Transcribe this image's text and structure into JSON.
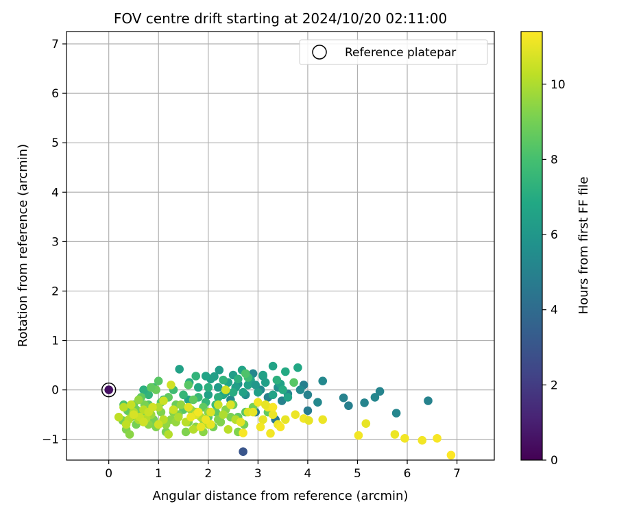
{
  "chart_data": {
    "type": "scatter",
    "title": "FOV centre drift starting at 2024/10/20 02:11:00",
    "xlabel": "Angular distance from reference (arcmin)",
    "ylabel": "Rotation from reference (arcmin)",
    "xlim": [
      -0.85,
      7.75
    ],
    "ylim": [
      -1.42,
      7.25
    ],
    "xticks": [
      0,
      1,
      2,
      3,
      4,
      5,
      6,
      7
    ],
    "yticks": [
      -1,
      0,
      1,
      2,
      3,
      4,
      5,
      6,
      7
    ],
    "grid": true,
    "legend": {
      "position": "top-right",
      "entries": [
        {
          "label": "Reference platepar",
          "marker": "open-circle",
          "color": "#000000"
        }
      ]
    },
    "reference_point": {
      "x": 0,
      "y": 0
    },
    "colorbar": {
      "label": "Hours from first FF file",
      "min": 0,
      "max": 11.4,
      "ticks": [
        0,
        2,
        4,
        6,
        8,
        10
      ],
      "colormap": "viridis"
    },
    "points": [
      [
        0,
        0,
        0.5
      ],
      [
        2.7,
        -1.25,
        3.0
      ],
      [
        4.3,
        0.18,
        5.3
      ],
      [
        4.72,
        -0.16,
        5.0
      ],
      [
        4.82,
        -0.32,
        4.9
      ],
      [
        5.14,
        -0.26,
        5.1
      ],
      [
        5.35,
        -0.15,
        5.2
      ],
      [
        5.45,
        -0.03,
        5.1
      ],
      [
        5.78,
        -0.47,
        5.2
      ],
      [
        6.42,
        -0.22,
        5.0
      ],
      [
        4.2,
        -0.25,
        5.3
      ],
      [
        4.0,
        -0.42,
        4.7
      ],
      [
        3.92,
        0.1,
        4.9
      ],
      [
        4.0,
        -0.1,
        5.0
      ],
      [
        3.85,
        0.0,
        5.4
      ],
      [
        3.6,
        -0.08,
        5.2
      ],
      [
        3.48,
        -0.22,
        5.0
      ],
      [
        3.35,
        -0.6,
        4.6
      ],
      [
        3.4,
        0.05,
        5.6
      ],
      [
        3.2,
        -0.15,
        5.0
      ],
      [
        3.1,
        0.28,
        5.8
      ],
      [
        2.9,
        0.33,
        5.2
      ],
      [
        2.95,
        -0.45,
        4.8
      ],
      [
        3.05,
        0.0,
        5.3
      ],
      [
        2.75,
        -0.1,
        5.5
      ],
      [
        2.6,
        0.12,
        5.8
      ],
      [
        2.45,
        -0.2,
        5.4
      ],
      [
        2.35,
        -0.05,
        6.0
      ],
      [
        3.3,
        0.48,
        6.6
      ],
      [
        3.55,
        0.37,
        6.9
      ],
      [
        3.8,
        0.45,
        6.8
      ],
      [
        3.1,
        0.3,
        6.5
      ],
      [
        2.85,
        0.2,
        6.6
      ],
      [
        2.68,
        0.4,
        6.6
      ],
      [
        2.5,
        0.3,
        6.3
      ],
      [
        2.22,
        0.4,
        6.2
      ],
      [
        2.05,
        0.22,
        6.4
      ],
      [
        2.12,
        0.27,
        6.4
      ],
      [
        1.95,
        0.28,
        6.6
      ],
      [
        1.42,
        0.42,
        6.5
      ],
      [
        1.62,
        0.15,
        7.0
      ],
      [
        3.3,
        -0.1,
        6.6
      ],
      [
        3.0,
        -0.05,
        6.4
      ],
      [
        2.8,
        0.1,
        6.6
      ],
      [
        2.55,
        0.05,
        6.4
      ],
      [
        2.3,
        -0.1,
        6.8
      ],
      [
        3.15,
        0.15,
        6.4
      ],
      [
        2.95,
        0.1,
        6.0
      ],
      [
        2.7,
        -0.05,
        6.5
      ],
      [
        2.4,
        0.15,
        6.6
      ],
      [
        2.2,
        0.05,
        6.2
      ],
      [
        2.0,
        -0.1,
        6.5
      ],
      [
        1.8,
        0.05,
        6.8
      ],
      [
        1.6,
        -0.2,
        6.6
      ],
      [
        3.45,
        0.12,
        6.5
      ],
      [
        3.6,
        -0.15,
        6.6
      ],
      [
        3.38,
        0.2,
        7.2
      ],
      [
        3.5,
        0.0,
        7.0
      ],
      [
        2.6,
        0.22,
        7.2
      ],
      [
        2.3,
        0.2,
        7.4
      ],
      [
        2.0,
        0.05,
        7.2
      ],
      [
        1.8,
        -0.15,
        7.6
      ],
      [
        2.15,
        -0.3,
        7.8
      ],
      [
        1.95,
        -0.25,
        7.5
      ],
      [
        2.5,
        -0.05,
        7.0
      ],
      [
        2.2,
        -0.15,
        7.2
      ],
      [
        1.5,
        -0.1,
        7.5
      ],
      [
        1.3,
        0.0,
        7.8
      ],
      [
        1.1,
        -0.2,
        7.6
      ],
      [
        0.9,
        0.05,
        7.8
      ],
      [
        0.8,
        -0.1,
        7.4
      ],
      [
        0.7,
        0.0,
        7.2
      ],
      [
        1.75,
        0.28,
        7.4
      ],
      [
        2.45,
        -0.3,
        7.6
      ],
      [
        2.8,
        0.25,
        7.8
      ],
      [
        2.75,
        0.33,
        8.2
      ],
      [
        3.72,
        0.15,
        8.4
      ],
      [
        3.2,
        -0.45,
        8.6
      ],
      [
        2.15,
        -0.45,
        8.5
      ],
      [
        2.0,
        -0.55,
        8.4
      ],
      [
        1.9,
        -0.35,
        8.6
      ],
      [
        1.7,
        -0.2,
        8.6
      ],
      [
        1.5,
        -0.4,
        8.4
      ],
      [
        1.35,
        -0.3,
        8.8
      ],
      [
        1.2,
        -0.15,
        8.6
      ],
      [
        1.05,
        -0.25,
        8.4
      ],
      [
        0.95,
        0.0,
        8.8
      ],
      [
        0.85,
        0.05,
        8.6
      ],
      [
        1.0,
        0.18,
        8.4
      ],
      [
        0.8,
        -0.3,
        8.4
      ],
      [
        0.65,
        -0.15,
        8.6
      ],
      [
        0.5,
        -0.3,
        8.8
      ],
      [
        0.38,
        -0.42,
        8.6
      ],
      [
        0.3,
        -0.3,
        8.2
      ],
      [
        1.6,
        0.1,
        8.4
      ],
      [
        2.6,
        -0.55,
        8.6
      ],
      [
        2.75,
        -0.45,
        8.4
      ],
      [
        2.5,
        -0.3,
        8.8
      ],
      [
        2.9,
        -0.35,
        9.0
      ],
      [
        2.25,
        -0.65,
        9.2
      ],
      [
        2.1,
        -0.75,
        9.0
      ],
      [
        1.9,
        -0.6,
        9.2
      ],
      [
        1.75,
        -0.75,
        9.4
      ],
      [
        1.6,
        -0.65,
        9.2
      ],
      [
        1.4,
        -0.5,
        9.0
      ],
      [
        1.25,
        -0.6,
        9.4
      ],
      [
        1.05,
        -0.45,
        9.2
      ],
      [
        0.9,
        -0.6,
        9.0
      ],
      [
        0.8,
        -0.7,
        9.4
      ],
      [
        0.65,
        -0.5,
        9.2
      ],
      [
        0.55,
        -0.7,
        9.0
      ],
      [
        0.45,
        -0.55,
        9.4
      ],
      [
        0.35,
        -0.8,
        9.2
      ],
      [
        0.28,
        -0.62,
        9.0
      ],
      [
        0.42,
        -0.9,
        9.4
      ],
      [
        0.55,
        -0.4,
        8.9
      ],
      [
        0.72,
        -0.3,
        9.1
      ],
      [
        0.95,
        -0.75,
        9.2
      ],
      [
        1.15,
        -0.85,
        9.1
      ],
      [
        1.3,
        -0.45,
        9.3
      ],
      [
        1.55,
        -0.85,
        9.2
      ],
      [
        1.75,
        -0.45,
        9.0
      ],
      [
        1.9,
        -0.85,
        9.4
      ],
      [
        2.0,
        -0.45,
        9.3
      ],
      [
        2.2,
        -0.6,
        9.2
      ],
      [
        2.35,
        -0.4,
        9.3
      ],
      [
        2.45,
        -0.55,
        9.1
      ],
      [
        2.6,
        -0.85,
        9.2
      ],
      [
        2.72,
        -0.7,
        9.0
      ],
      [
        1.15,
        -0.7,
        9.5
      ],
      [
        1.35,
        -0.65,
        9.6
      ],
      [
        1.45,
        -0.3,
        9.5
      ],
      [
        1.65,
        -0.4,
        9.6
      ],
      [
        0.6,
        -0.2,
        9.5
      ],
      [
        0.85,
        -0.5,
        9.7
      ],
      [
        0.5,
        -0.45,
        10.0
      ],
      [
        0.4,
        -0.6,
        10.1
      ],
      [
        0.3,
        -0.35,
        10.2
      ],
      [
        0.6,
        -0.6,
        10.0
      ],
      [
        0.7,
        -0.4,
        10.2
      ],
      [
        0.75,
        -0.58,
        10.1
      ],
      [
        1.0,
        -0.35,
        10.0
      ],
      [
        1.1,
        -0.6,
        10.2
      ],
      [
        1.2,
        -0.9,
        10.1
      ],
      [
        1.4,
        -0.55,
        10.0
      ],
      [
        1.55,
        -0.65,
        10.2
      ],
      [
        1.7,
        -0.8,
        10.1
      ],
      [
        1.85,
        -0.55,
        10.0
      ],
      [
        2.0,
        -0.7,
        10.2
      ],
      [
        2.3,
        -0.5,
        10.0
      ],
      [
        2.4,
        -0.8,
        10.2
      ],
      [
        2.55,
        -0.6,
        10.1
      ],
      [
        0.2,
        -0.55,
        10.3
      ],
      [
        0.35,
        -0.7,
        10.3
      ],
      [
        0.45,
        -0.3,
        10.4
      ],
      [
        0.62,
        -0.55,
        10.5
      ],
      [
        0.8,
        -0.45,
        10.5
      ],
      [
        1.0,
        -0.7,
        10.6
      ],
      [
        1.3,
        -0.4,
        10.5
      ],
      [
        1.25,
        0.1,
        10.6
      ],
      [
        1.1,
        -0.22,
        10.5
      ],
      [
        0.88,
        -0.35,
        10.6
      ],
      [
        0.7,
        -0.65,
        10.6
      ],
      [
        0.5,
        -0.5,
        10.7
      ],
      [
        2.2,
        -0.3,
        10.5
      ],
      [
        1.75,
        -0.5,
        10.8
      ],
      [
        1.6,
        -0.35,
        10.9
      ],
      [
        2.05,
        -0.45,
        10.8
      ],
      [
        2.8,
        -0.45,
        10.8
      ],
      [
        2.9,
        -0.45,
        11.0
      ],
      [
        3.0,
        -0.25,
        11.2
      ],
      [
        3.1,
        -0.6,
        11.0
      ],
      [
        3.2,
        -0.35,
        11.2
      ],
      [
        3.3,
        -0.5,
        11.1
      ],
      [
        2.65,
        -0.65,
        10.9
      ],
      [
        2.05,
        -0.7,
        11.0
      ],
      [
        1.95,
        -0.6,
        11.1
      ],
      [
        1.85,
        -0.75,
        11.0
      ],
      [
        2.35,
        0.0,
        10.6
      ],
      [
        2.45,
        -0.3,
        10.8
      ],
      [
        3.15,
        -0.3,
        11.0
      ],
      [
        3.4,
        -0.7,
        11.1
      ],
      [
        3.45,
        -0.75,
        11.3
      ],
      [
        3.55,
        -0.6,
        11.0
      ],
      [
        3.05,
        -0.75,
        11.2
      ],
      [
        3.25,
        -0.88,
        11.2
      ],
      [
        2.7,
        -0.87,
        11.3
      ],
      [
        3.75,
        -0.5,
        11.1
      ],
      [
        3.92,
        -0.58,
        11.2
      ],
      [
        4.02,
        -0.62,
        11.0
      ],
      [
        4.3,
        -0.6,
        11.1
      ],
      [
        3.3,
        -0.35,
        11.3
      ],
      [
        1.8,
        -0.45,
        11.2
      ],
      [
        1.65,
        -0.55,
        11.1
      ],
      [
        5.02,
        -0.92,
        11.2
      ],
      [
        5.17,
        -0.68,
        11.0
      ],
      [
        5.75,
        -0.9,
        11.1
      ],
      [
        5.95,
        -0.98,
        11.2
      ],
      [
        6.3,
        -1.02,
        11.2
      ],
      [
        6.6,
        -0.98,
        11.3
      ],
      [
        6.88,
        -1.32,
        11.4
      ]
    ]
  }
}
